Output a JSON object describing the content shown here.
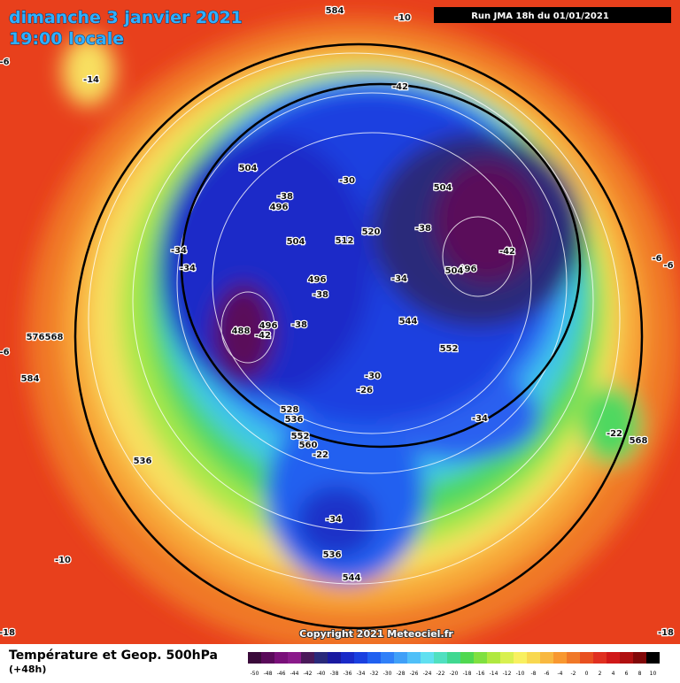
{
  "header": {
    "title": "dimanche 3 janvier 2021",
    "subtitle": "19:00 locale",
    "run": "Run JMA 18h du 01/01/2021"
  },
  "map": {
    "labels": [
      -14,
      584,
      -10,
      -42,
      504,
      -38,
      496,
      -30,
      504,
      -38,
      520,
      512,
      504,
      -34,
      -34,
      -42,
      496,
      504,
      496,
      -38,
      -34,
      544,
      488,
      496,
      -42,
      -38,
      552,
      576,
      568,
      -6,
      584,
      -30,
      -26,
      -34,
      -22,
      568,
      528,
      536,
      552,
      560,
      -22,
      536,
      -34,
      536,
      544,
      -10,
      -6,
      -6,
      -6,
      -18,
      -18
    ],
    "copyright": "Copyright 2021 Meteociel.fr"
  },
  "footer": {
    "title": "Température et Geop. 500hPa",
    "lead": "(+48h)"
  },
  "legend": {
    "stops": [
      {
        "value": -50,
        "color": "#3a0a3a"
      },
      {
        "value": -48,
        "color": "#5a0a5a"
      },
      {
        "value": -46,
        "color": "#7a107a"
      },
      {
        "value": -44,
        "color": "#8a1a8a"
      },
      {
        "value": -42,
        "color": "#4a1a5a"
      },
      {
        "value": -40,
        "color": "#2a2a7a"
      },
      {
        "value": -38,
        "color": "#1a1aa0"
      },
      {
        "value": -36,
        "color": "#1a2ac8"
      },
      {
        "value": -34,
        "color": "#1a40e0"
      },
      {
        "value": -32,
        "color": "#2060f0"
      },
      {
        "value": -30,
        "color": "#3080f8"
      },
      {
        "value": -28,
        "color": "#40a0f8"
      },
      {
        "value": -26,
        "color": "#50c0f8"
      },
      {
        "value": -24,
        "color": "#60e0f0"
      },
      {
        "value": -22,
        "color": "#50e0c0"
      },
      {
        "value": -20,
        "color": "#40d890"
      },
      {
        "value": -18,
        "color": "#50d850"
      },
      {
        "value": -16,
        "color": "#80e040"
      },
      {
        "value": -14,
        "color": "#b0e840"
      },
      {
        "value": -12,
        "color": "#d8f050"
      },
      {
        "value": -10,
        "color": "#f8f060"
      },
      {
        "value": -8,
        "color": "#f8d850"
      },
      {
        "value": -6,
        "color": "#f8b840"
      },
      {
        "value": -4,
        "color": "#f89830"
      },
      {
        "value": -2,
        "color": "#f07828"
      },
      {
        "value": 0,
        "color": "#e85020"
      },
      {
        "value": 2,
        "color": "#e03020"
      },
      {
        "value": 4,
        "color": "#d01818"
      },
      {
        "value": 6,
        "color": "#b01010"
      },
      {
        "value": 8,
        "color": "#800808"
      },
      {
        "value": 10,
        "color": "#000000"
      }
    ]
  }
}
